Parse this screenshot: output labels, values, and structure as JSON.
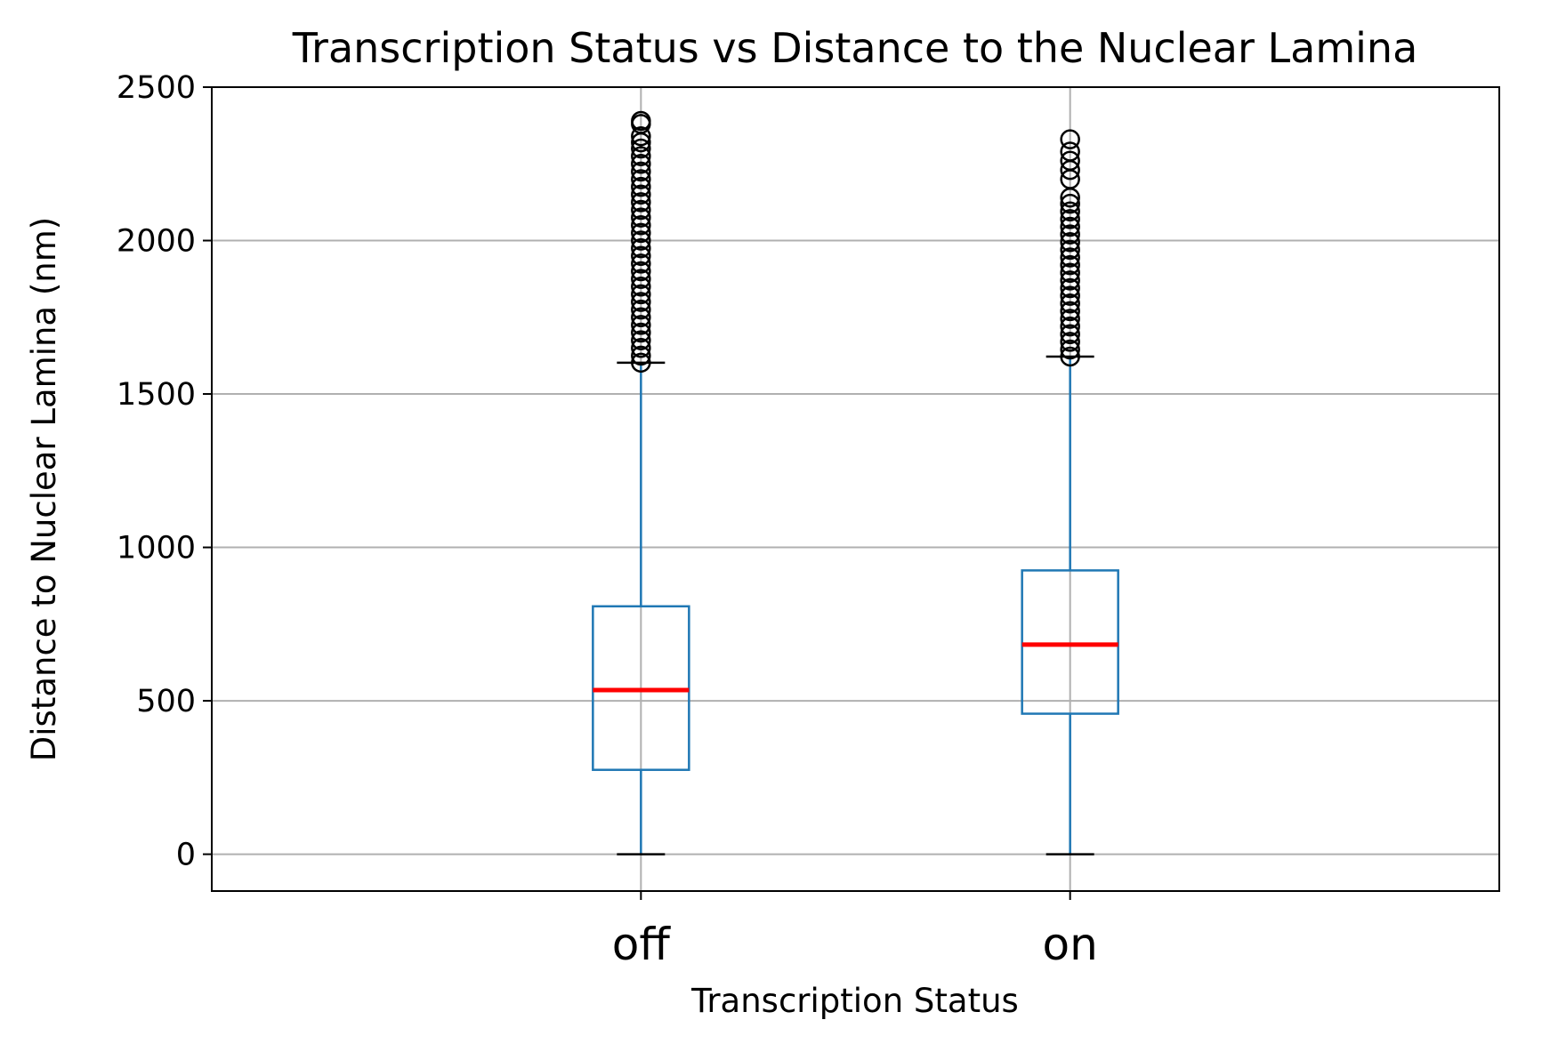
{
  "chart_data": {
    "type": "box",
    "title": "Transcription Status vs Distance to the Nuclear Lamina",
    "xlabel": "Transcription Status",
    "ylabel": "Distance to Nuclear Lamina (nm)",
    "categories": [
      "off",
      "on"
    ],
    "ylim": [
      -120,
      2500
    ],
    "yticks": [
      0,
      500,
      1000,
      1500,
      2000,
      2500
    ],
    "grid": true,
    "boxes": [
      {
        "category": "off",
        "whisker_low": 0,
        "q1": 275,
        "median": 535,
        "q3": 808,
        "whisker_high": 1602,
        "outlier_min": 1602,
        "outlier_max": 2390
      },
      {
        "category": "on",
        "whisker_low": 0,
        "q1": 458,
        "median": 683,
        "q3": 925,
        "whisker_high": 1622,
        "outlier_min": 1622,
        "outlier_max": 2330
      }
    ],
    "outliers": [
      [
        1602,
        1625,
        1650,
        1675,
        1700,
        1725,
        1750,
        1775,
        1800,
        1825,
        1850,
        1875,
        1900,
        1925,
        1950,
        1975,
        2000,
        2025,
        2050,
        2075,
        2100,
        2125,
        2150,
        2175,
        2200,
        2225,
        2250,
        2275,
        2300,
        2320,
        2340,
        2380,
        2390
      ],
      [
        1622,
        1645,
        1670,
        1695,
        1720,
        1745,
        1770,
        1795,
        1820,
        1845,
        1870,
        1895,
        1920,
        1945,
        1970,
        1995,
        2020,
        2045,
        2070,
        2095,
        2120,
        2140,
        2200,
        2230,
        2260,
        2290,
        2330
      ]
    ],
    "colors": {
      "box": "#1f77b4",
      "median": "#ff0000",
      "cap": "#000000",
      "outlier": "#000000",
      "grid": "#b0b0b0"
    }
  }
}
